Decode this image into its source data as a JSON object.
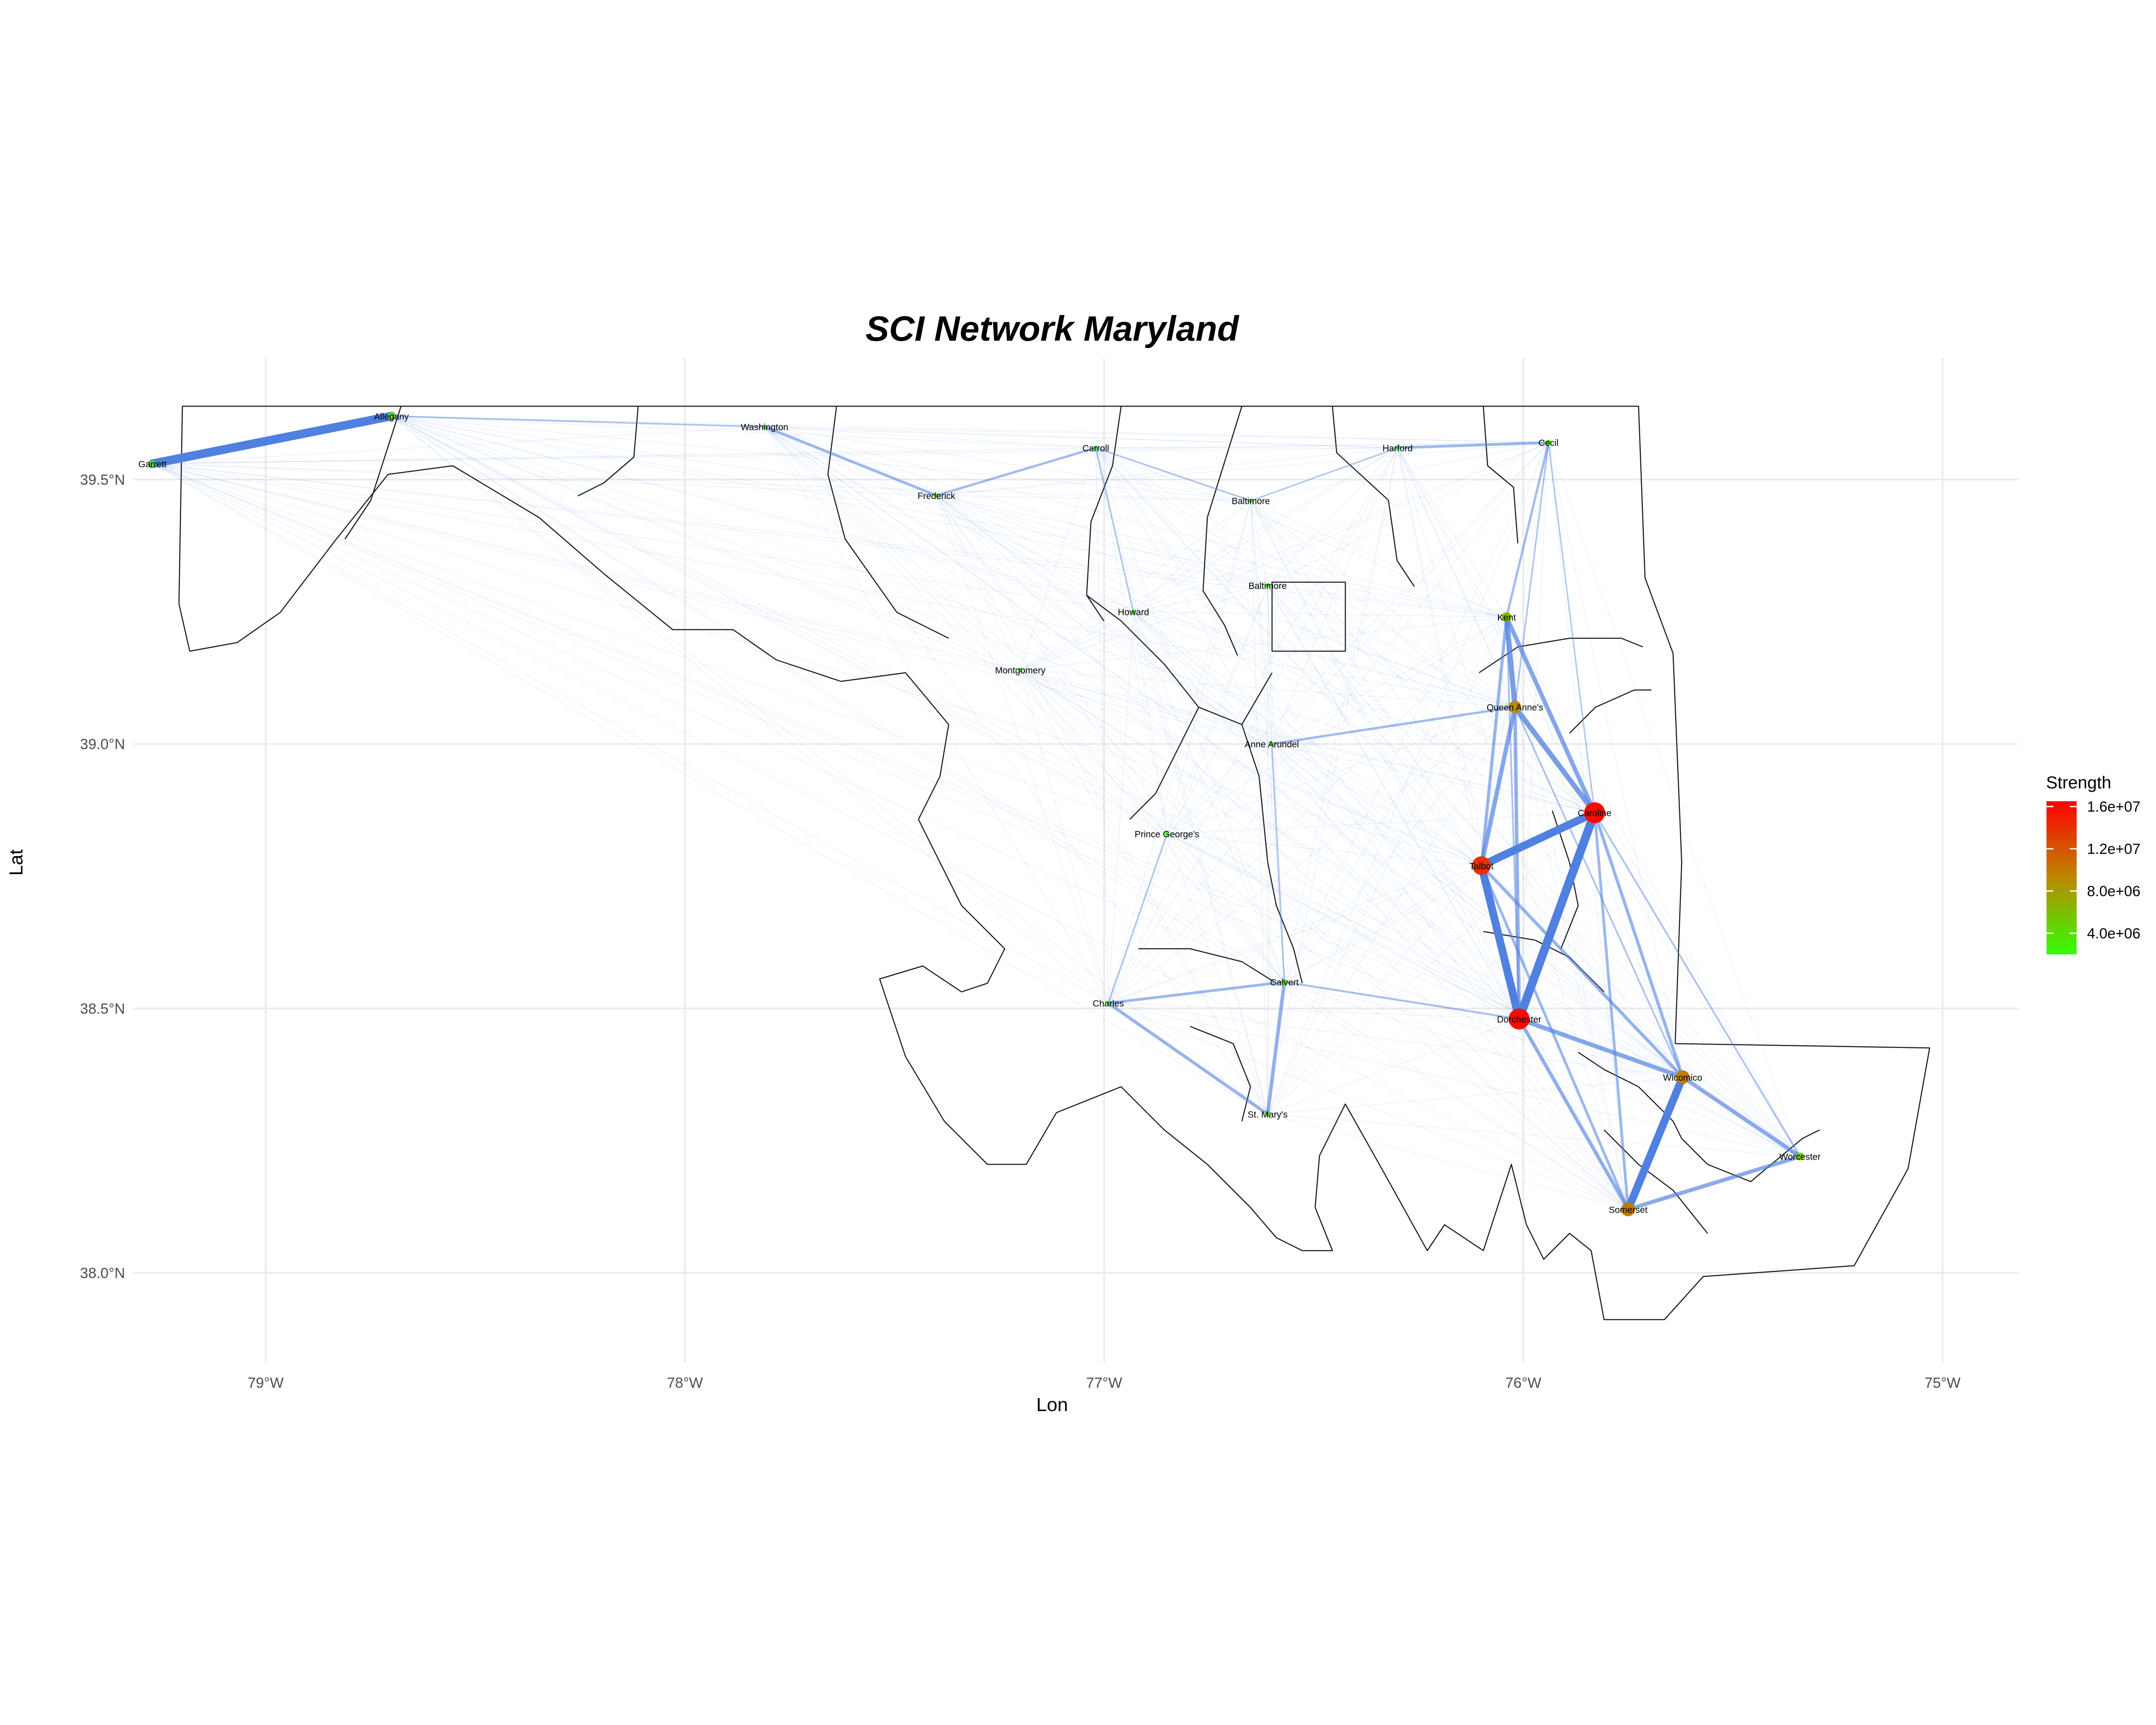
{
  "title": "SCI Network Maryland",
  "xlabel": "Lon",
  "ylabel": "Lat",
  "x_ticks": [
    {
      "value": -79,
      "label": "79°W"
    },
    {
      "value": -78,
      "label": "78°W"
    },
    {
      "value": -77,
      "label": "77°W"
    },
    {
      "value": -76,
      "label": "76°W"
    },
    {
      "value": -75,
      "label": "75°W"
    }
  ],
  "y_ticks": [
    {
      "value": 38.0,
      "label": "38.0°N"
    },
    {
      "value": 38.5,
      "label": "38.5°N"
    },
    {
      "value": 39.0,
      "label": "39.0°N"
    },
    {
      "value": 39.5,
      "label": "39.5°N"
    }
  ],
  "legend": {
    "title": "Strength",
    "labels": [
      "1.6e+07",
      "1.2e+07",
      "8.0e+06",
      "4.0e+06"
    ],
    "values": [
      16000000,
      12000000,
      8000000,
      4000000
    ],
    "low_color": "#33ff00",
    "mid_color": "#bb8800",
    "high_color": "#ff0000"
  },
  "edge_color": "#5080e0",
  "chart_data": {
    "type": "network-map",
    "title": "SCI Network Maryland",
    "xlim": [
      -79.5,
      -74.82
    ],
    "ylim": [
      37.83,
      39.73
    ],
    "nodes": [
      {
        "name": "Garrett",
        "lon": -79.27,
        "lat": 39.53,
        "strength": 3500000
      },
      {
        "name": "Allegany",
        "lon": -78.7,
        "lat": 39.62,
        "strength": 4500000
      },
      {
        "name": "Washington",
        "lon": -77.81,
        "lat": 39.6,
        "strength": 2000000
      },
      {
        "name": "Frederick",
        "lon": -77.4,
        "lat": 39.47,
        "strength": 2000000
      },
      {
        "name": "Carroll",
        "lon": -77.02,
        "lat": 39.56,
        "strength": 2000000
      },
      {
        "name": "Baltimore",
        "lon": -76.65,
        "lat": 39.46,
        "strength": 2000000
      },
      {
        "name": "Harford",
        "lon": -76.3,
        "lat": 39.56,
        "strength": 2000000
      },
      {
        "name": "Cecil",
        "lon": -75.94,
        "lat": 39.57,
        "strength": 3000000
      },
      {
        "name": "Baltimore",
        "lon": -76.61,
        "lat": 39.3,
        "strength": 1500000
      },
      {
        "name": "Howard",
        "lon": -76.93,
        "lat": 39.25,
        "strength": 2000000
      },
      {
        "name": "Kent",
        "lon": -76.04,
        "lat": 39.24,
        "strength": 6500000
      },
      {
        "name": "Montgomery",
        "lon": -77.2,
        "lat": 39.14,
        "strength": 1500000
      },
      {
        "name": "Queen Anne's",
        "lon": -76.02,
        "lat": 39.07,
        "strength": 9000000
      },
      {
        "name": "Anne Arundel",
        "lon": -76.6,
        "lat": 39.0,
        "strength": 2000000
      },
      {
        "name": "Caroline",
        "lon": -75.83,
        "lat": 38.87,
        "strength": 16000000
      },
      {
        "name": "Prince George's",
        "lon": -76.85,
        "lat": 38.83,
        "strength": 2000000
      },
      {
        "name": "Talbot",
        "lon": -76.1,
        "lat": 38.77,
        "strength": 14000000
      },
      {
        "name": "Calvert",
        "lon": -76.57,
        "lat": 38.55,
        "strength": 3000000
      },
      {
        "name": "Charles",
        "lon": -76.99,
        "lat": 38.51,
        "strength": 2000000
      },
      {
        "name": "Dorchester",
        "lon": -76.01,
        "lat": 38.48,
        "strength": 16000000
      },
      {
        "name": "Wicomico",
        "lon": -75.62,
        "lat": 38.37,
        "strength": 10000000
      },
      {
        "name": "St. Mary's",
        "lon": -76.61,
        "lat": 38.3,
        "strength": 2500000
      },
      {
        "name": "Worcester",
        "lon": -75.34,
        "lat": 38.22,
        "strength": 5000000
      },
      {
        "name": "Somerset",
        "lon": -75.75,
        "lat": 38.12,
        "strength": 10000000
      }
    ],
    "edges": [
      {
        "from": "Garrett",
        "to": "Allegany",
        "weight": 1.0
      },
      {
        "from": "Dorchester",
        "to": "Caroline",
        "weight": 1.0
      },
      {
        "from": "Dorchester",
        "to": "Talbot",
        "weight": 0.9
      },
      {
        "from": "Talbot",
        "to": "Caroline",
        "weight": 0.9
      },
      {
        "from": "Wicomico",
        "to": "Somerset",
        "weight": 0.9
      },
      {
        "from": "Kent",
        "to": "Queen Anne's",
        "weight": 0.55
      },
      {
        "from": "Queen Anne's",
        "to": "Caroline",
        "weight": 0.55
      },
      {
        "from": "Kent",
        "to": "Caroline",
        "weight": 0.45
      },
      {
        "from": "Queen Anne's",
        "to": "Talbot",
        "weight": 0.45
      },
      {
        "from": "Dorchester",
        "to": "Wicomico",
        "weight": 0.45
      },
      {
        "from": "Wicomico",
        "to": "Worcester",
        "weight": 0.4
      },
      {
        "from": "Somerset",
        "to": "Worcester",
        "weight": 0.4
      },
      {
        "from": "Dorchester",
        "to": "Somerset",
        "weight": 0.35
      },
      {
        "from": "Queen Anne's",
        "to": "Dorchester",
        "weight": 0.35
      },
      {
        "from": "Caroline",
        "to": "Wicomico",
        "weight": 0.3
      },
      {
        "from": "Talbot",
        "to": "Wicomico",
        "weight": 0.3
      },
      {
        "from": "Kent",
        "to": "Talbot",
        "weight": 0.3
      },
      {
        "from": "Caroline",
        "to": "Somerset",
        "weight": 0.25
      },
      {
        "from": "Talbot",
        "to": "Somerset",
        "weight": 0.25
      },
      {
        "from": "Calvert",
        "to": "St. Mary's",
        "weight": 0.35
      },
      {
        "from": "Charles",
        "to": "St. Mary's",
        "weight": 0.3
      },
      {
        "from": "Charles",
        "to": "Calvert",
        "weight": 0.25
      },
      {
        "from": "Cecil",
        "to": "Harford",
        "weight": 0.25
      },
      {
        "from": "Frederick",
        "to": "Washington",
        "weight": 0.25
      },
      {
        "from": "Frederick",
        "to": "Carroll",
        "weight": 0.2
      },
      {
        "from": "Anne Arundel",
        "to": "Queen Anne's",
        "weight": 0.2
      },
      {
        "from": "Cecil",
        "to": "Kent",
        "weight": 0.2
      },
      {
        "from": "Calvert",
        "to": "Dorchester",
        "weight": 0.15
      },
      {
        "from": "Carroll",
        "to": "Baltimore",
        "weight": 0.1
      },
      {
        "from": "Calvert",
        "to": "Anne Arundel",
        "weight": 0.1
      },
      {
        "from": "Prince George's",
        "to": "Charles",
        "weight": 0.1
      },
      {
        "from": "Allegany",
        "to": "Washington",
        "weight": 0.1
      },
      {
        "from": "Howard",
        "to": "Carroll",
        "weight": 0.1
      },
      {
        "from": "Caroline",
        "to": "Worcester",
        "weight": 0.12
      },
      {
        "from": "Kent",
        "to": "Dorchester",
        "weight": 0.12
      },
      {
        "from": "Queen Anne's",
        "to": "Wicomico",
        "weight": 0.1
      },
      {
        "from": "Cecil",
        "to": "Queen Anne's",
        "weight": 0.1
      },
      {
        "from": "Caroline",
        "to": "Cecil",
        "weight": 0.08
      },
      {
        "from": "Harford",
        "to": "Baltimore",
        "weight": 0.08
      }
    ]
  }
}
